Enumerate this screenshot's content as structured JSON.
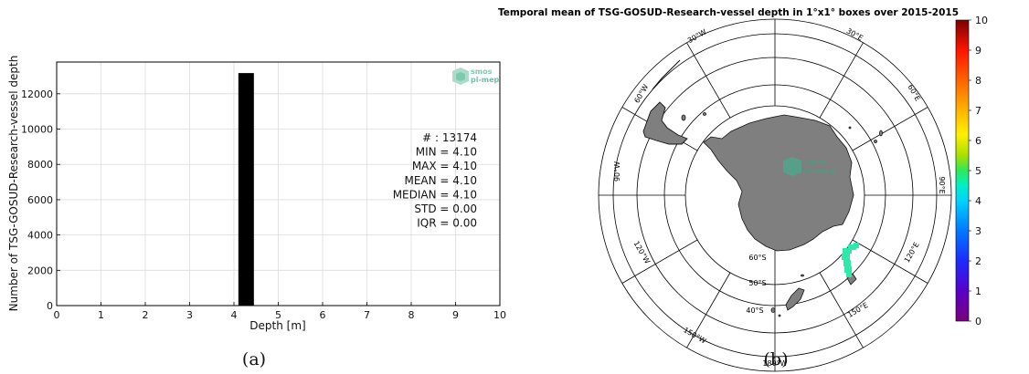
{
  "captions": {
    "a": "(a)",
    "b": "(b)"
  },
  "logo_text": [
    "smos",
    "pi-mep"
  ],
  "chart_data": [
    {
      "type": "bar",
      "title": "",
      "xlabel": "Depth [m]",
      "ylabel": "Number of TSG-GOSUD-Research-vessel depth",
      "xlim": [
        0,
        10
      ],
      "ylim": [
        0,
        13800
      ],
      "xticks": [
        0,
        1,
        2,
        3,
        4,
        5,
        6,
        7,
        8,
        9,
        10
      ],
      "yticks": [
        0,
        2000,
        4000,
        6000,
        8000,
        10000,
        12000
      ],
      "grid": true,
      "bins": [
        {
          "x0": 4.1,
          "x1": 4.45,
          "count": 13174
        }
      ],
      "bar_color": "#000000",
      "stats": [
        "# : 13174",
        "MIN = 4.10",
        "MAX =  4.10",
        "MEAN = 4.10",
        "MEDIAN = 4.10",
        "STD = 0.00",
        "IQR = 0.00"
      ]
    },
    {
      "type": "heatmap",
      "title": "Temporal mean of TSG-GOSUD-Research-vessel depth in 1°x1° boxes over 2015-2015",
      "projection": "south polar stereographic",
      "lon_labels": [
        "30°E",
        "60°E",
        "90°E",
        "120°E",
        "150°E",
        "180°W",
        "150°W",
        "120°W",
        "90°W",
        "60°W",
        "30°W"
      ],
      "lat_labels": [
        "60°S",
        "50°S",
        "40°S"
      ],
      "colorbar": {
        "min": 0,
        "max": 10,
        "ticks": [
          0,
          1,
          2,
          3,
          4,
          5,
          6,
          7,
          8,
          9,
          10
        ]
      },
      "colors": {
        "land": "#7f7f7f",
        "data": "#30e8a8"
      },
      "track_value": 4.1
    }
  ]
}
